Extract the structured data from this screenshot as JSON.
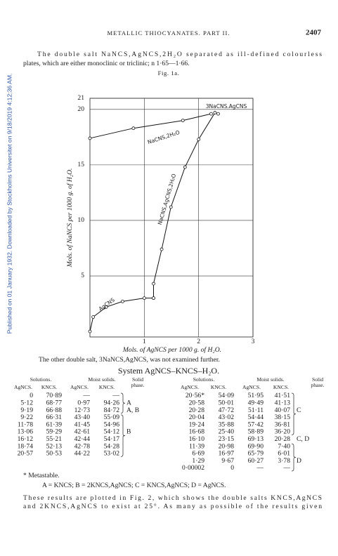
{
  "watermark": "Published on 01 January 1932. Downloaded by Stockholms Universitet on 9/18/2019 4:12:36 AM.",
  "header": {
    "running_title": "METALLIC THIOCYANATES.  PART II.",
    "page_number": "2407"
  },
  "paragraph_1": [
    "The double salt NaNCS,AgNCS,2H₂O separated as ill-defined colourless",
    "plates, which are either monoclinic or triclinic; n 1·65—1·66."
  ],
  "chart_data": {
    "type": "line",
    "title": "Fig. 1a.",
    "xlabel": "Mols. of AgNCS per 1000 g. of H₂O.",
    "ylabel": "Mols. of NaNCS per 1000 g. of H₂O.",
    "xlim": [
      0,
      3
    ],
    "ylim": [
      -0.5,
      21
    ],
    "xticks": [
      1,
      2,
      3
    ],
    "yticks": [
      5,
      10,
      15,
      20,
      21
    ],
    "grid": true,
    "color": "#111111",
    "series": [
      {
        "name": "AgCNS",
        "x": [
          0,
          0.06,
          0.3,
          0.6,
          1.0,
          1.17
        ],
        "values": [
          0,
          1.3,
          2.2,
          2.7,
          3.0,
          3.0
        ]
      },
      {
        "name": "NaCNS,AgCNS,2H₂O",
        "x": [
          1.17,
          1.17,
          1.32,
          1.49,
          1.75,
          2.0,
          2.3
        ],
        "values": [
          3.0,
          4.3,
          7.4,
          11.2,
          14.8,
          17.3,
          19.7
        ]
      },
      {
        "name": "NaCNS,2H₂O",
        "x": [
          0,
          0.8,
          1.71,
          2.23
        ],
        "values": [
          17.4,
          18.3,
          19.0,
          19.6
        ]
      },
      {
        "name": "3NaCNS.AgCNS",
        "x": [
          2.36
        ],
        "values": [
          19.6
        ]
      }
    ]
  },
  "paragraph_2": "The other double salt, 3NaNCS,AgNCS, was not examined further.",
  "table": {
    "title": "System AgNCS–KNCS–H₂O.",
    "group_headers": [
      "Solutions.",
      "Moist solids.",
      "Solid",
      "phase."
    ],
    "column_headers": [
      "AgNCS.",
      "KNCS.",
      "AgNCS.",
      "KNCS."
    ],
    "left": [
      [
        "0",
        "70·89",
        "—",
        "—",
        null
      ],
      [
        "5·12",
        "68·77",
        "0·97",
        "94·26",
        "A"
      ],
      [
        "9·19",
        "66·88",
        "12·73",
        "84·72",
        "A, B"
      ],
      [
        "9·22",
        "66·31",
        "43·40",
        "55·09",
        null
      ],
      [
        "11·78",
        "61·39",
        "41·45",
        "54·96",
        null
      ],
      [
        "13·06",
        "59·29",
        "42·61",
        "54·12",
        "B"
      ],
      [
        "16·12",
        "55·21",
        "42·44",
        "54·17",
        null
      ],
      [
        "18·74",
        "52·13",
        "42·78",
        "54·28",
        null
      ],
      [
        "20·57",
        "50·53",
        "44·22",
        "53·02",
        null
      ]
    ],
    "right": [
      [
        "20·56*",
        "54·09",
        "51·95",
        "41·51",
        null
      ],
      [
        "20·58",
        "50·01",
        "49·49",
        "41·13",
        null
      ],
      [
        "20·28",
        "47·72",
        "51·11",
        "40·07",
        "C"
      ],
      [
        "20·04",
        "43·02",
        "54·44",
        "38·15",
        null
      ],
      [
        "19·24",
        "35·88",
        "57·42",
        "36·81",
        null
      ],
      [
        "16·68",
        "25·40",
        "58·89",
        "36·20",
        null
      ],
      [
        "16·10",
        "23·15",
        "69·13",
        "20·28",
        "C, D"
      ],
      [
        "11·39",
        "20·98",
        "69·90",
        "7·40",
        null
      ],
      [
        "6·69",
        "16·97",
        "65·79",
        "6·01",
        null
      ],
      [
        "1·29",
        "9·67",
        "60·27",
        "3·78",
        "D"
      ],
      [
        "0·00002",
        "0",
        "—",
        "—",
        null
      ]
    ]
  },
  "footnotes": [
    "* Metastable.",
    "A = KNCS;  B = 2KNCS,AgNCS;  C = KNCS,AgNCS;  D = AgNCS."
  ],
  "paragraph_3": [
    "These results are plotted in Fig. 2, which shows the double salts KNCS,AgNCS",
    "and 2KNCS,AgNCS to exist at 25°.  As many as possible of the results given"
  ]
}
